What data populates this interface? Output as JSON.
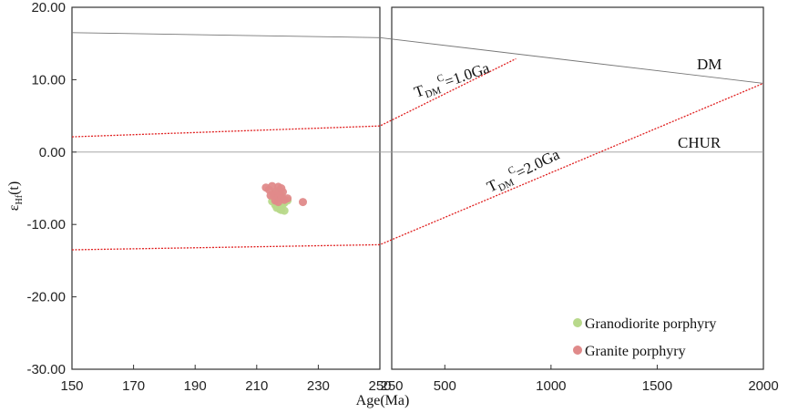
{
  "chart_data": {
    "type": "scatter",
    "ylabel_main": "ε",
    "ylabel_sub": "Hf",
    "ylabel_tail": "(t)",
    "xlabel": "Age(Ma)",
    "ylim": [
      -30,
      20
    ],
    "yticks": [
      "20.00",
      "10.00",
      "0.00",
      "-10.00",
      "-20.00",
      "-30.00"
    ],
    "ytick_values": [
      20,
      10,
      0,
      -10,
      -20,
      -30
    ],
    "panels": [
      {
        "xlim": [
          150,
          250
        ],
        "xticks": [
          "150",
          "170",
          "190",
          "210",
          "230",
          "250"
        ],
        "xtick_values": [
          150,
          170,
          190,
          210,
          230,
          250
        ]
      },
      {
        "xlim": [
          250,
          2000
        ],
        "xticks": [
          "250",
          "500",
          "1000",
          "1500",
          "2000"
        ],
        "xtick_values": [
          250,
          500,
          1000,
          1500,
          2000
        ]
      }
    ],
    "reference_lines": [
      {
        "name": "DM",
        "color": "#777777",
        "dash": false,
        "points": [
          [
            150,
            16.5
          ],
          [
            250,
            15.8
          ],
          [
            2000,
            9.5
          ]
        ]
      },
      {
        "name": "CHUR",
        "color": "#999999",
        "dash": false,
        "points": [
          [
            150,
            0
          ],
          [
            2000,
            0
          ]
        ]
      },
      {
        "name": "TDM1",
        "color": "#e02020",
        "dash": true,
        "points": [
          [
            150,
            2.1
          ],
          [
            250,
            3.6
          ],
          [
            835,
            12.9
          ]
        ]
      },
      {
        "name": "TDM2",
        "color": "#e02020",
        "dash": true,
        "points": [
          [
            150,
            -13.5
          ],
          [
            250,
            -12.8
          ],
          [
            2000,
            9.5
          ]
        ]
      }
    ],
    "annotations": {
      "dm": "DM",
      "chur": "CHUR",
      "tdm1_main": "T",
      "tdm1_sub": "DM",
      "tdm1_sup": "C",
      "tdm1_tail": "=1.0Ga",
      "tdm2_main": "T",
      "tdm2_sub": "DM",
      "tdm2_sup": "C",
      "tdm2_tail": "=2.0Ga"
    },
    "series": [
      {
        "name": "Granodiorite porphyry",
        "color": "#b8d98b",
        "points": [
          [
            215,
            -6.8
          ],
          [
            216,
            -7.3
          ],
          [
            216.5,
            -7.7
          ],
          [
            217,
            -7.5
          ],
          [
            217.5,
            -7.9
          ],
          [
            218,
            -8.0
          ],
          [
            219,
            -8.1
          ],
          [
            215.5,
            -6.3
          ],
          [
            218.5,
            -7.2
          ],
          [
            216,
            -5.6
          ],
          [
            217,
            -6.5
          ],
          [
            219,
            -7.0
          ],
          [
            220,
            -6.7
          ],
          [
            218,
            -5.9
          ]
        ]
      },
      {
        "name": "Granite porphyry",
        "color": "#e08a8a",
        "points": [
          [
            213,
            -4.9
          ],
          [
            214,
            -5.2
          ],
          [
            215,
            -4.7
          ],
          [
            215.5,
            -5.8
          ],
          [
            216,
            -6.1
          ],
          [
            216.5,
            -5.4
          ],
          [
            217,
            -4.8
          ],
          [
            217.5,
            -5.9
          ],
          [
            218,
            -6.3
          ],
          [
            218.5,
            -5.5
          ],
          [
            219,
            -6.6
          ],
          [
            214.5,
            -6.0
          ],
          [
            216,
            -6.7
          ],
          [
            220,
            -6.4
          ],
          [
            217,
            -6.9
          ],
          [
            225,
            -6.9
          ],
          [
            218,
            -5.0
          ]
        ]
      }
    ]
  }
}
